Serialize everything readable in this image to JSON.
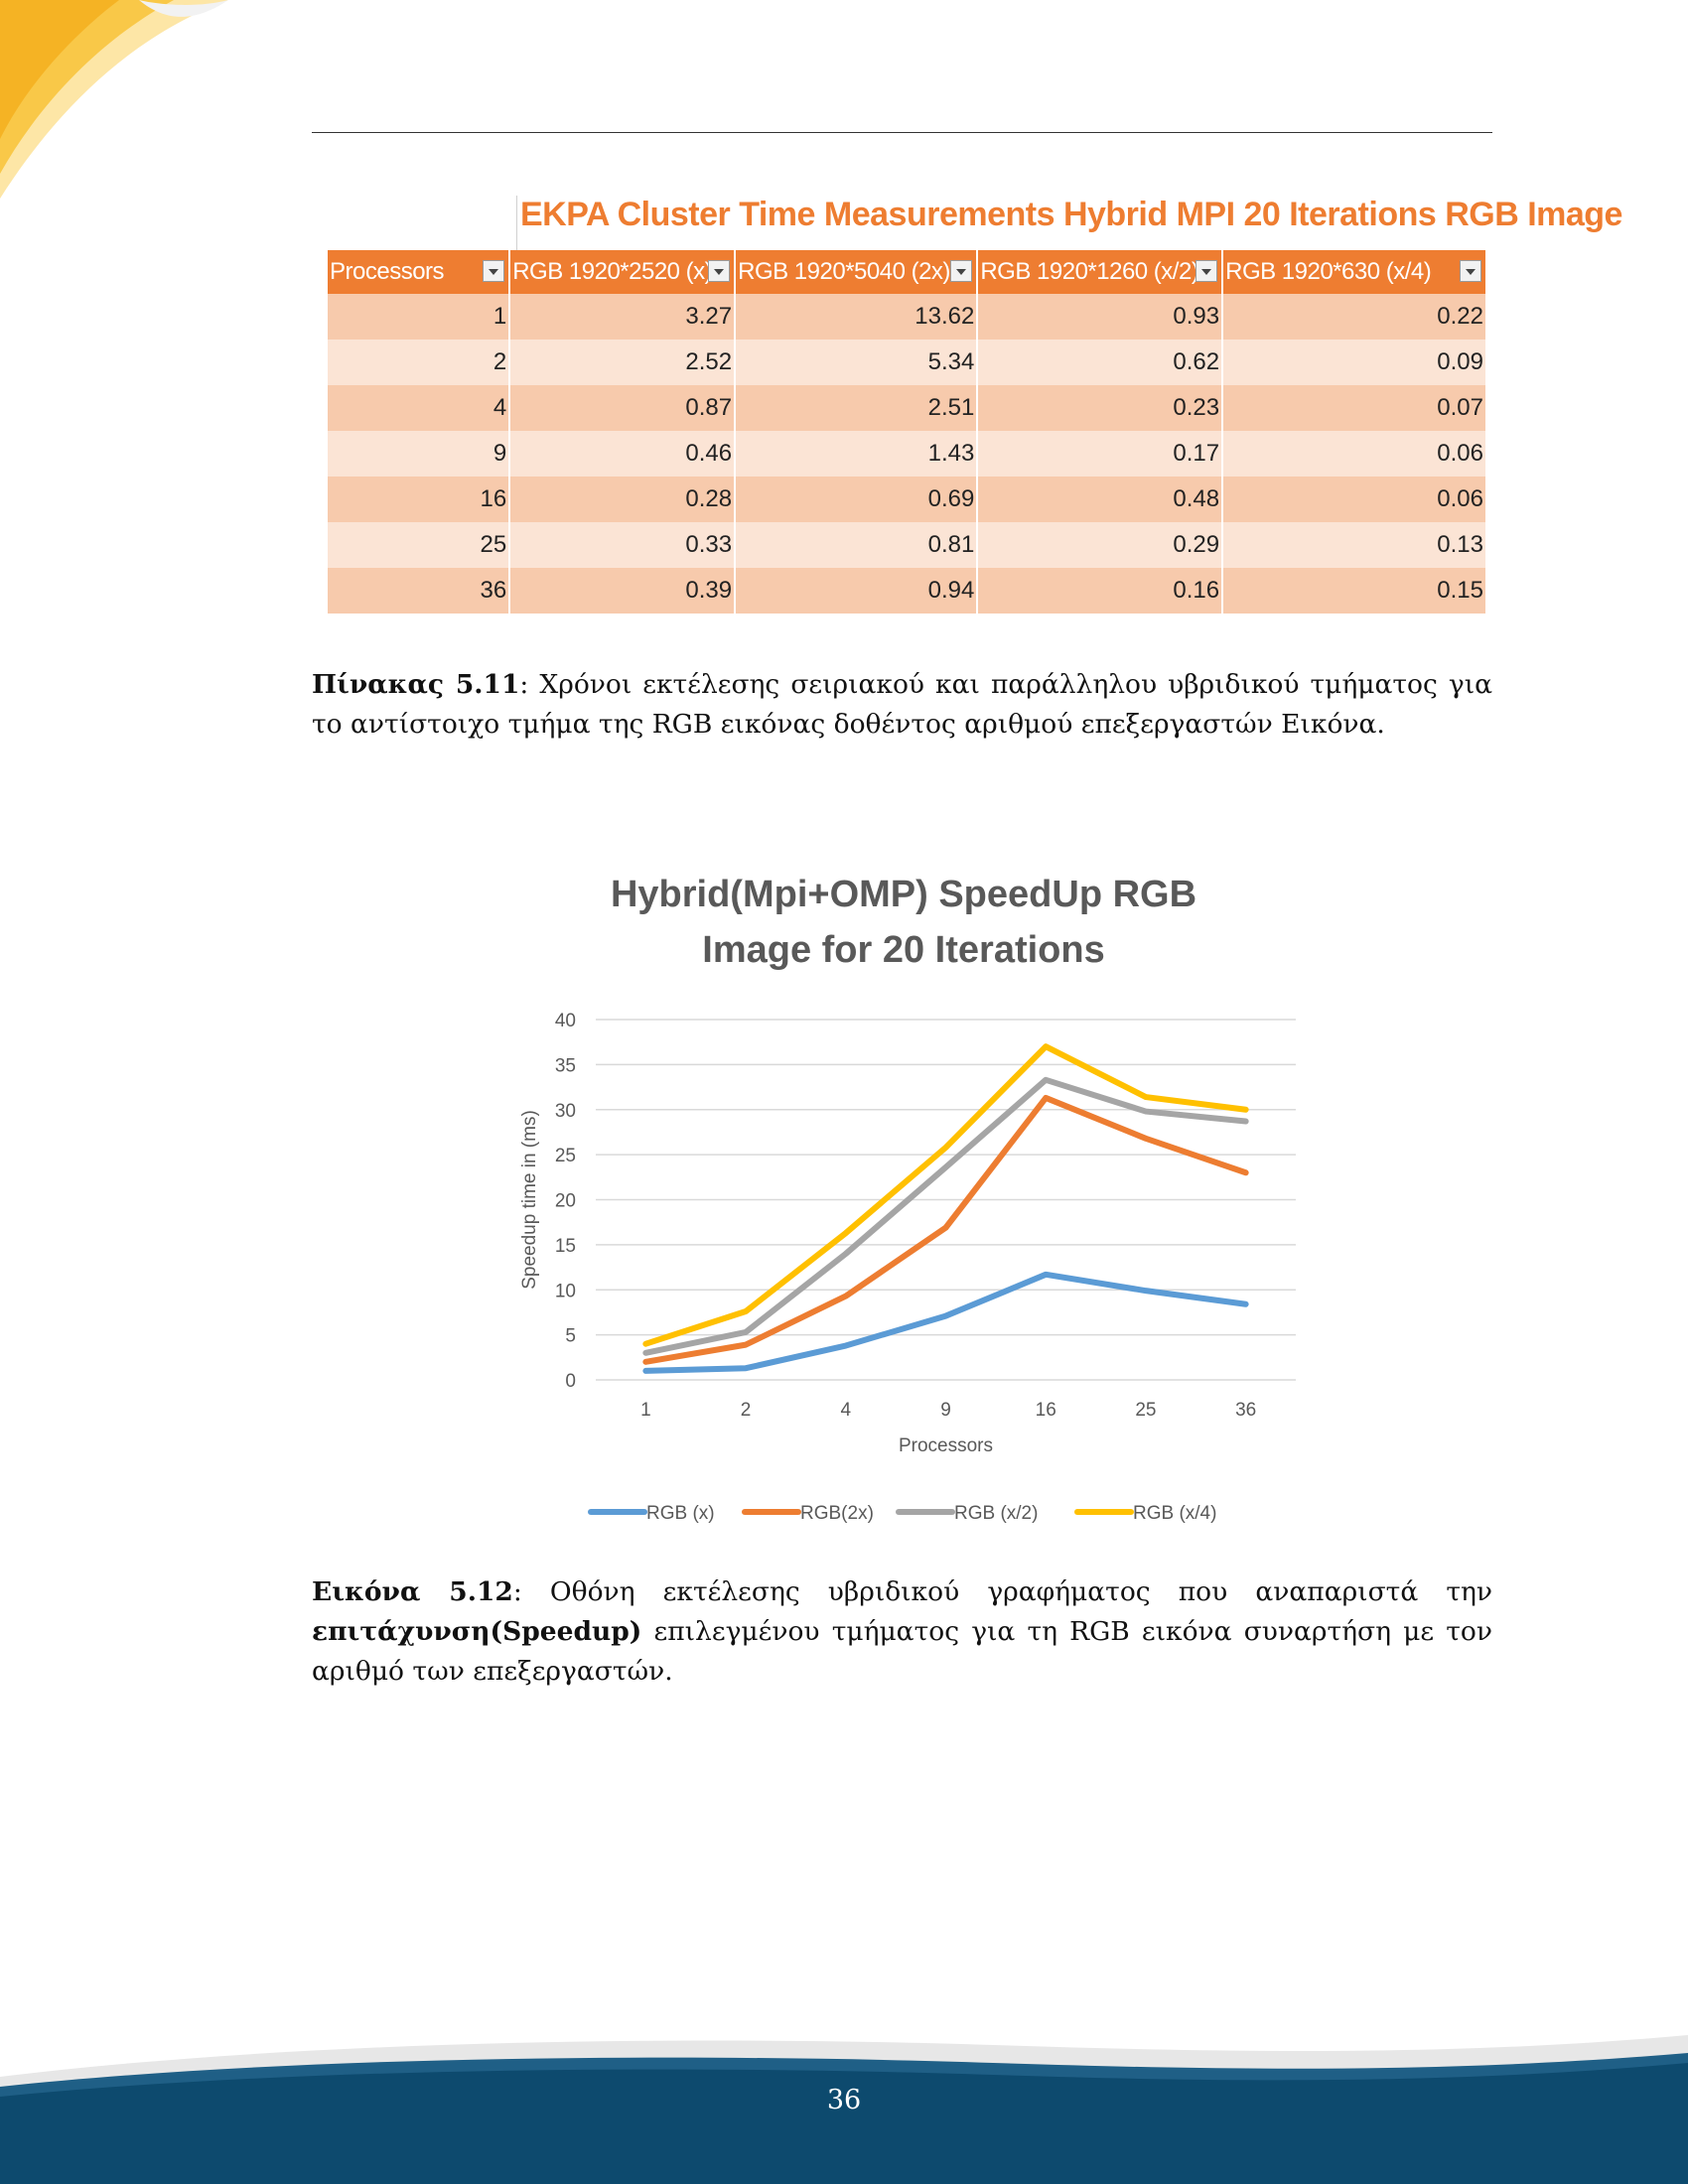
{
  "table": {
    "title": "EKPA Cluster Time Measurements Hybrid MPI  20 Iterations RGB Image",
    "headers": [
      "Processors",
      "RGB 1920*2520 (x)",
      "RGB 1920*5040 (2x)",
      "RGB 1920*1260 (x/2)",
      "RGB 1920*630 (x/4)"
    ],
    "rows": [
      [
        "1",
        "3.27",
        "13.62",
        "0.93",
        "0.22"
      ],
      [
        "2",
        "2.52",
        "5.34",
        "0.62",
        "0.09"
      ],
      [
        "4",
        "0.87",
        "2.51",
        "0.23",
        "0.07"
      ],
      [
        "9",
        "0.46",
        "1.43",
        "0.17",
        "0.06"
      ],
      [
        "16",
        "0.28",
        "0.69",
        "0.48",
        "0.06"
      ],
      [
        "25",
        "0.33",
        "0.81",
        "0.29",
        "0.13"
      ],
      [
        "36",
        "0.39",
        "0.94",
        "0.16",
        "0.15"
      ]
    ]
  },
  "table_caption": {
    "label": "Πίνακας 5.11",
    "text": ": Χρόνοι εκτέλεσης σειριακού και παράλληλου υβριδικού τμήματος για το αντίστοιχο τμήμα της RGB εικόνας δοθέντος αριθμού επεξεργαστών Εικόνα."
  },
  "chart_data": {
    "type": "line",
    "title_line1": "Hybrid(Mpi+OMP) SpeedUp RGB",
    "title_line2": "Image for 20 Iterations",
    "xlabel": "Processors",
    "ylabel": "Speedup time in (ms)",
    "categories": [
      "1",
      "2",
      "4",
      "9",
      "16",
      "25",
      "36"
    ],
    "yticks": [
      0,
      5,
      10,
      15,
      20,
      25,
      30,
      35,
      40
    ],
    "ylim": [
      0,
      40
    ],
    "grid": true,
    "legend_position": "bottom",
    "series": [
      {
        "name": "RGB (x)",
        "color": "#5b9bd5",
        "values": [
          1,
          1.3,
          3.8,
          7.1,
          11.7,
          9.9,
          8.4
        ]
      },
      {
        "name": "RGB(2x)",
        "color": "#ed7d31",
        "values": [
          2,
          3.9,
          9.3,
          16.9,
          31.3,
          26.8,
          23.0
        ]
      },
      {
        "name": "RGB (x/2)",
        "color": "#a5a5a5",
        "values": [
          3,
          5.3,
          14.0,
          23.6,
          33.3,
          29.8,
          28.7
        ]
      },
      {
        "name": "RGB (x/4)",
        "color": "#ffc000",
        "values": [
          4,
          7.6,
          16.3,
          25.8,
          37.0,
          31.4,
          30.0
        ]
      }
    ]
  },
  "figure_caption": {
    "label": "Εικόνα 5.12",
    "text_before": ": Οθόνη εκτέλεσης υβριδικού γραφήματος που αναπαριστά την ",
    "bold_text": "επιτάχυνση(Speedup)",
    "text_after": " επιλεγμένου τμήματος για τη RGB εικόνα συναρτήση με τον αριθμό των επεξεργαστών."
  },
  "page_number": "36",
  "colors": {
    "accent_orange": "#ee7d31",
    "footer_navy": "#0d4a6e",
    "corner_gold": "#f5b324"
  }
}
